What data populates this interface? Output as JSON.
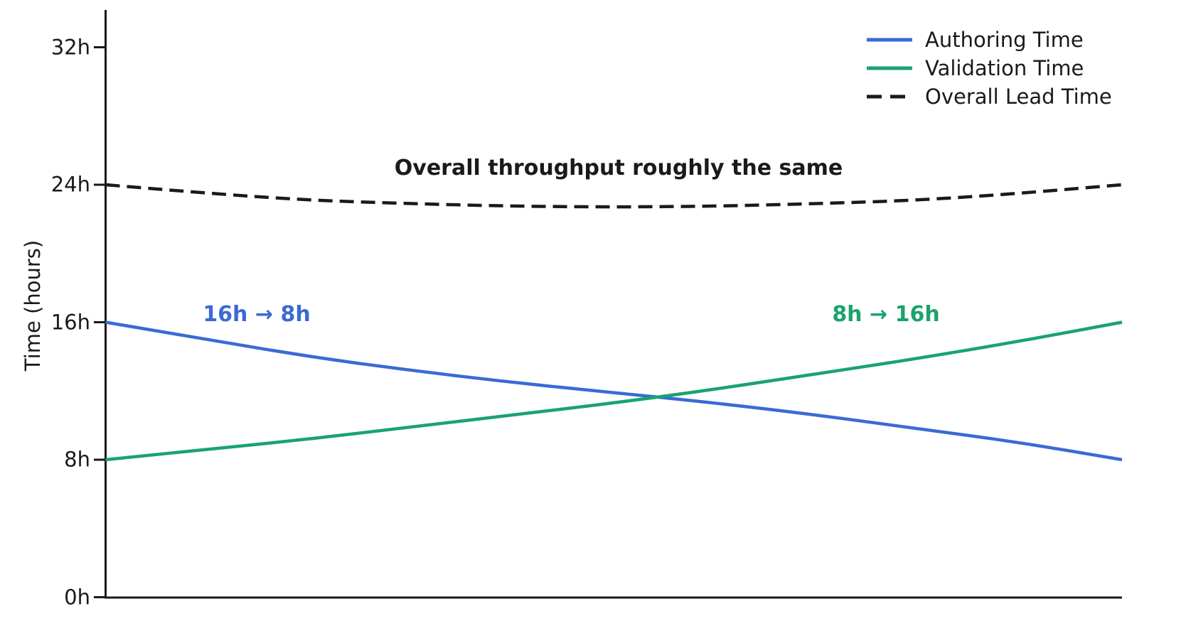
{
  "page": {
    "background": "#ffffff"
  },
  "colors": {
    "axis": "#1a1a1a",
    "text": "#1a1a1a"
  },
  "chart_data": {
    "type": "line",
    "title": "",
    "xlabel": "",
    "ylabel": "Time (hours)",
    "ylim": [
      0,
      32
    ],
    "grid": false,
    "x_ticks": "none",
    "yticks": [
      {
        "value": 0,
        "label": "0h"
      },
      {
        "value": 8,
        "label": "8h"
      },
      {
        "value": 16,
        "label": "16h"
      },
      {
        "value": 24,
        "label": "24h"
      },
      {
        "value": 32,
        "label": "32h"
      }
    ],
    "x_normalized": [
      0,
      0.1,
      0.2,
      0.3,
      0.4,
      0.5,
      0.6,
      0.7,
      0.8,
      0.9,
      1
    ],
    "series": [
      {
        "name": "Authoring Time",
        "color": "#3A6AD4",
        "style": "solid",
        "annotation": "16h → 8h",
        "values": [
          16,
          15,
          14,
          13.2,
          12.5,
          11.9,
          11.3,
          10.6,
          9.8,
          9,
          8
        ]
      },
      {
        "name": "Validation Time",
        "color": "#1AA36E",
        "style": "solid",
        "annotation": "8h → 16h",
        "values": [
          8,
          8.6,
          9.2,
          9.9,
          10.6,
          11.3,
          12.1,
          13,
          13.9,
          14.9,
          16
        ]
      },
      {
        "name": "Overall Lead Time",
        "color": "#1a1a1a",
        "style": "dashed",
        "annotation": "Overall throughput roughly the same",
        "values": [
          24,
          23.5,
          23.1,
          22.9,
          22.75,
          22.7,
          22.75,
          22.9,
          23.1,
          23.5,
          24
        ]
      }
    ],
    "legend": {
      "position": "upper right"
    }
  }
}
